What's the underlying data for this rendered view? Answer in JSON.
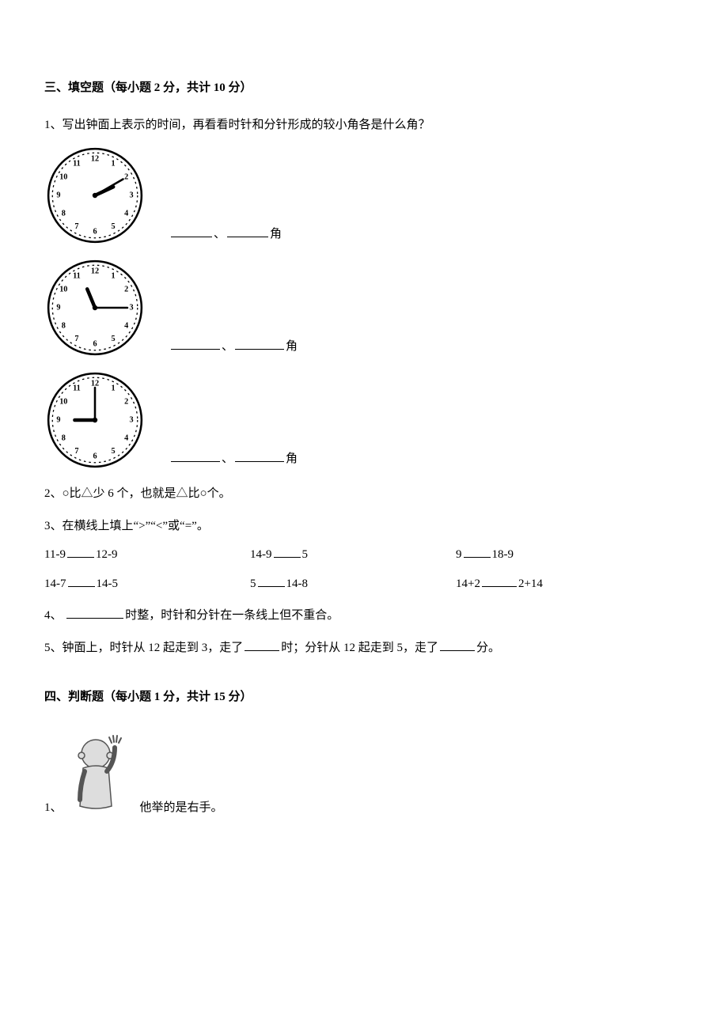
{
  "section3": {
    "heading": "三、填空题（每小题 2 分，共计 10 分）",
    "q1": {
      "prompt": "1、写出钟面上表示的时间，再看看时针和分针形成的较小角各是什么角？",
      "sep": "、",
      "angle_suffix": "角",
      "clocks": [
        {
          "hour": 2,
          "minute": 10
        },
        {
          "hour": 11,
          "minute": 15
        },
        {
          "hour": 9,
          "minute": 0
        }
      ]
    },
    "q2": "2、○比△少 6 个，也就是△比○个。",
    "q3": {
      "prompt": "3、在横线上填上“>”“<”或“=”。",
      "rows": [
        {
          "a": [
            "11-9",
            "12-9"
          ],
          "b": [
            "14-9",
            "5"
          ],
          "c": [
            "9",
            "18-9"
          ]
        },
        {
          "a": [
            "14-7",
            "14-5"
          ],
          "b": [
            "5",
            "14-8"
          ],
          "c": [
            "14+2",
            "2+14"
          ]
        }
      ]
    },
    "q4": {
      "pre": "4、 ",
      "post": "时整，时针和分针在一条线上但不重合。"
    },
    "q5": {
      "p1": "5、钟面上，时针从 12 起走到 3，走了",
      "p2": "时；分针从 12 起走到 5，走了",
      "p3": "分。"
    }
  },
  "section4": {
    "heading": "四、判断题（每小题 1 分，共计 15 分）",
    "q1": {
      "num": "1、",
      "text": "他举的是右手。"
    }
  },
  "style": {
    "clock_face_fill": "#ffffff",
    "clock_face_stroke": "#000000",
    "clock_dot_fill": "#000000",
    "clock_number_font": "8px",
    "boy_stroke": "#555555",
    "boy_fill": "#dddddd"
  }
}
